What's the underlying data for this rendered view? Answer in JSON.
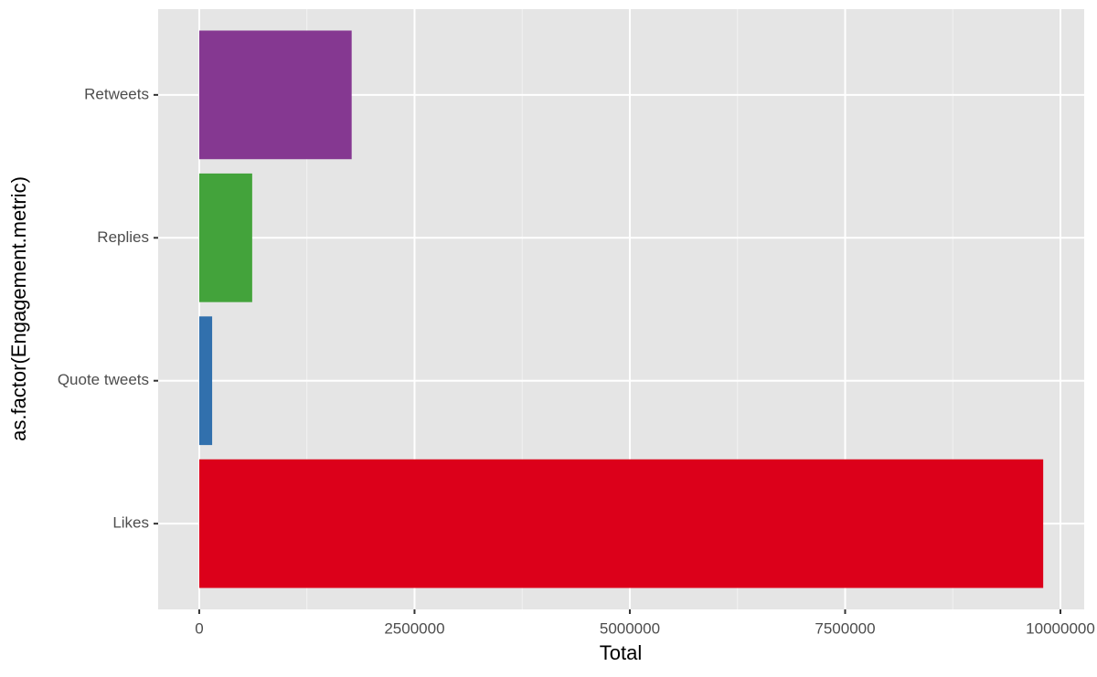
{
  "chart_data": {
    "type": "bar",
    "orientation": "horizontal",
    "categories": [
      "Likes",
      "Quote tweets",
      "Replies",
      "Retweets"
    ],
    "values": [
      9800000,
      150000,
      615000,
      1770000
    ],
    "colors": [
      "#dc001a",
      "#3170ad",
      "#43a33b",
      "#853891"
    ],
    "x_label": "Total",
    "y_label": "as.factor(Engagement.metric)",
    "xlim": [
      -477000,
      10276000
    ],
    "xticks": [
      0,
      2500000,
      5000000,
      7500000,
      10000000
    ],
    "x_minor_ticks": [
      1250000,
      3750000,
      6250000,
      8750000
    ],
    "grid": true
  }
}
